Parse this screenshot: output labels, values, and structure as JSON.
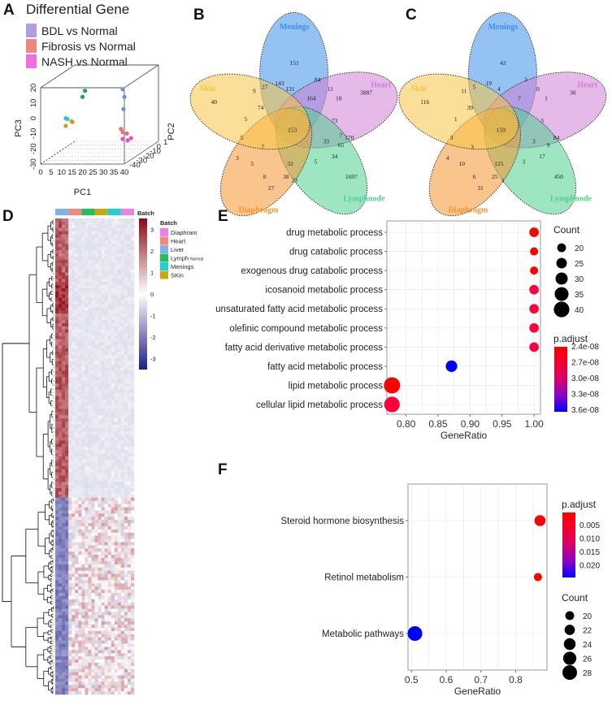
{
  "panels": {
    "A": "A",
    "B": "B",
    "C": "C",
    "D": "D",
    "E": "E",
    "F": "F"
  },
  "chart_data": [
    {
      "id": "A",
      "type": "scatter",
      "subtype": "3d-pca",
      "title": "Differential Gene",
      "legend": [
        {
          "label": "BDL vs Normal",
          "color": "#b39ddb"
        },
        {
          "label": "Fibrosis vs Normal",
          "color": "#f4877c"
        },
        {
          "label": "NASH vs Normal",
          "color": "#f06de0"
        }
      ],
      "xlabel": "PC1",
      "ylabel": "PC2",
      "zlabel": "PC3",
      "xticks": [
        "0",
        "5",
        "10",
        "15",
        "20",
        "25",
        "30",
        "35",
        "40"
      ],
      "yticks": [
        "-40",
        "-30",
        "-20",
        "-10",
        "0",
        "1"
      ],
      "zticks": [
        "-30",
        "-20",
        "-10",
        "0",
        "10",
        "20"
      ],
      "points": [
        {
          "group": "Lymph",
          "color": "#1aa64a",
          "px": 0.53,
          "pz": 0.96
        },
        {
          "group": "Lymph",
          "color": "#1aa64a",
          "px": 0.5,
          "pz": 0.88
        },
        {
          "group": "Liver",
          "color": "#6f8fcf",
          "px": 0.98,
          "pz": 0.98
        },
        {
          "group": "Liver",
          "color": "#6f8fcf",
          "px": 1.0,
          "pz": 0.88
        },
        {
          "group": "Liver",
          "color": "#6f8fcf",
          "px": 0.99,
          "pz": 0.72
        },
        {
          "group": "Menings",
          "color": "#2bc6d6",
          "px": 0.3,
          "pz": 0.6
        },
        {
          "group": "Menings",
          "color": "#2bc6d6",
          "px": 0.32,
          "pz": 0.59
        },
        {
          "group": "SKin",
          "color": "#c9a012",
          "px": 0.37,
          "pz": 0.56
        },
        {
          "group": "SKin",
          "color": "#c9a012",
          "px": 0.38,
          "pz": 0.55
        },
        {
          "group": "SKin",
          "color": "#c9a012",
          "px": 0.3,
          "pz": 0.5
        },
        {
          "group": "Heart",
          "color": "#e86f6f",
          "px": 0.96,
          "pz": 0.46
        },
        {
          "group": "Heart",
          "color": "#e86f6f",
          "px": 0.98,
          "pz": 0.42
        },
        {
          "group": "Heart",
          "color": "#e86f6f",
          "px": 1.03,
          "pz": 0.4
        },
        {
          "group": "Diaphram",
          "color": "#e34fd6",
          "px": 0.98,
          "pz": 0.33
        },
        {
          "group": "Diaphram",
          "color": "#e34fd6",
          "px": 1.04,
          "pz": 0.31
        },
        {
          "group": "Diaphram",
          "color": "#e34fd6",
          "px": 1.08,
          "pz": 0.34
        }
      ]
    },
    {
      "id": "B",
      "type": "venn",
      "sets": [
        "Menings",
        "Heart",
        "Lymphnode",
        "Diaphragm",
        "Skin"
      ],
      "set_colors": {
        "Menings": "#3d8fe8",
        "Heart": "#d07fd6",
        "Lymphnode": "#4fd08f",
        "Diaphragm": "#f5952f",
        "Skin": "#f7c545"
      },
      "labels": [
        {
          "v": "151",
          "x": 0.47,
          "y": 0.26
        },
        {
          "v": "3887",
          "x": 0.81,
          "y": 0.42
        },
        {
          "v": "1697",
          "x": 0.74,
          "y": 0.87
        },
        {
          "v": "27",
          "x": 0.36,
          "y": 0.93
        },
        {
          "v": "40",
          "x": 0.09,
          "y": 0.47
        },
        {
          "v": "143",
          "x": 0.4,
          "y": 0.37
        },
        {
          "v": "84",
          "x": 0.58,
          "y": 0.35
        },
        {
          "v": "9",
          "x": 0.28,
          "y": 0.41
        },
        {
          "v": "27",
          "x": 0.33,
          "y": 0.39
        },
        {
          "v": "131",
          "x": 0.45,
          "y": 0.4
        },
        {
          "v": "11",
          "x": 0.64,
          "y": 0.4
        },
        {
          "v": "164",
          "x": 0.55,
          "y": 0.45
        },
        {
          "v": "18",
          "x": 0.68,
          "y": 0.45
        },
        {
          "v": "74",
          "x": 0.31,
          "y": 0.5
        },
        {
          "v": "5",
          "x": 0.24,
          "y": 0.56
        },
        {
          "v": "153",
          "x": 0.46,
          "y": 0.62
        },
        {
          "v": "73",
          "x": 0.66,
          "y": 0.57
        },
        {
          "v": "5",
          "x": 0.22,
          "y": 0.66
        },
        {
          "v": "7",
          "x": 0.32,
          "y": 0.71
        },
        {
          "v": "33",
          "x": 0.62,
          "y": 0.68
        },
        {
          "v": "7",
          "x": 0.69,
          "y": 0.65
        },
        {
          "v": "170",
          "x": 0.73,
          "y": 0.66
        },
        {
          "v": "65",
          "x": 0.69,
          "y": 0.7
        },
        {
          "v": "3",
          "x": 0.2,
          "y": 0.77
        },
        {
          "v": "5",
          "x": 0.27,
          "y": 0.8
        },
        {
          "v": "32",
          "x": 0.45,
          "y": 0.8
        },
        {
          "v": "5",
          "x": 0.57,
          "y": 0.79
        },
        {
          "v": "34",
          "x": 0.66,
          "y": 0.76
        },
        {
          "v": "8",
          "x": 0.33,
          "y": 0.87
        },
        {
          "v": "38",
          "x": 0.43,
          "y": 0.87
        },
        {
          "v": "23",
          "x": 0.47,
          "y": 0.89
        }
      ]
    },
    {
      "id": "C",
      "type": "venn",
      "sets": [
        "Menings",
        "Heart",
        "Lymphnode",
        "Diaphragm",
        "Skin"
      ],
      "labels": [
        {
          "v": "43",
          "x": 0.47,
          "y": 0.26
        },
        {
          "v": "30",
          "x": 0.81,
          "y": 0.42
        },
        {
          "v": "450",
          "x": 0.74,
          "y": 0.87
        },
        {
          "v": "31",
          "x": 0.36,
          "y": 0.93
        },
        {
          "v": "116",
          "x": 0.09,
          "y": 0.47
        },
        {
          "v": "19",
          "x": 0.4,
          "y": 0.37
        },
        {
          "v": "3",
          "x": 0.58,
          "y": 0.35
        },
        {
          "v": "11",
          "x": 0.28,
          "y": 0.41
        },
        {
          "v": "5",
          "x": 0.33,
          "y": 0.39
        },
        {
          "v": "4",
          "x": 0.45,
          "y": 0.4
        },
        {
          "v": "0",
          "x": 0.64,
          "y": 0.4
        },
        {
          "v": "7",
          "x": 0.55,
          "y": 0.45
        },
        {
          "v": "1",
          "x": 0.68,
          "y": 0.45
        },
        {
          "v": "39",
          "x": 0.31,
          "y": 0.5
        },
        {
          "v": "1",
          "x": 0.24,
          "y": 0.56
        },
        {
          "v": "159",
          "x": 0.46,
          "y": 0.62
        },
        {
          "v": "3",
          "x": 0.66,
          "y": 0.57
        },
        {
          "v": "3",
          "x": 0.22,
          "y": 0.66
        },
        {
          "v": "3",
          "x": 0.32,
          "y": 0.71
        },
        {
          "v": "3",
          "x": 0.62,
          "y": 0.68
        },
        {
          "v": "84",
          "x": 0.73,
          "y": 0.66
        },
        {
          "v": "9",
          "x": 0.69,
          "y": 0.7
        },
        {
          "v": "4",
          "x": 0.2,
          "y": 0.77
        },
        {
          "v": "10",
          "x": 0.27,
          "y": 0.8
        },
        {
          "v": "125",
          "x": 0.45,
          "y": 0.8
        },
        {
          "v": "3",
          "x": 0.57,
          "y": 0.79
        },
        {
          "v": "17",
          "x": 0.66,
          "y": 0.76
        },
        {
          "v": "6",
          "x": 0.33,
          "y": 0.87
        },
        {
          "v": "25",
          "x": 0.43,
          "y": 0.87
        },
        {
          "v": "1",
          "x": 0.47,
          "y": 0.89
        }
      ]
    },
    {
      "id": "D",
      "type": "heatmap",
      "batch_label": "Batch",
      "batch_legend": [
        {
          "label": "Diaphram",
          "color": "#f07ee8"
        },
        {
          "label": "Heart",
          "color": "#f4877c"
        },
        {
          "label": "Liver",
          "color": "#7fb0f0"
        },
        {
          "label": "Lymph",
          "sub": "Normal",
          "color": "#1fbf5a"
        },
        {
          "label": "Menings",
          "color": "#1fd0dc"
        },
        {
          "label": "SKin",
          "color": "#c9a812"
        }
      ],
      "column_batches": [
        "#7fb0f0",
        "#f4877c",
        "#1fbf5a",
        "#c9a812",
        "#1fd0dc",
        "#f07ee8"
      ],
      "colorbar_ticks": [
        "3",
        "2",
        "1",
        "0",
        "-1",
        "-2",
        "-3"
      ],
      "value_range": [
        -3.5,
        3.5
      ]
    },
    {
      "id": "E",
      "type": "scatter",
      "subtype": "dotplot",
      "categories": [
        "drug metabolic process",
        "drug catabolic process",
        "exogenous drug catabolic process",
        "icosanoid metabolic process",
        "unsaturated fatty acid metabolic process",
        "olefinic compound metabolic process",
        "fatty acid derivative metabolic process",
        "fatty acid metabolic process",
        "lipid metabolic process",
        "cellular lipid metabolic process"
      ],
      "x": [
        1.0,
        1.0,
        1.0,
        1.0,
        1.0,
        1.0,
        1.0,
        0.871,
        0.778,
        0.778
      ],
      "count": [
        22,
        18,
        18,
        22,
        22,
        22,
        22,
        28,
        42,
        40
      ],
      "p_adjust": [
        2.4e-08,
        2.4e-08,
        2.4e-08,
        2.9e-08,
        2.9e-08,
        2.9e-08,
        2.9e-08,
        3.7e-08,
        2.4e-08,
        2.9e-08
      ],
      "xlabel": "GeneRatio",
      "xticks": [
        "0.80",
        "0.85",
        "0.90",
        "0.95",
        "1.00"
      ],
      "xlim": [
        0.77,
        1.01
      ],
      "size_legend": {
        "title": "Count",
        "values": [
          "20",
          "25",
          "30",
          "35",
          "40"
        ]
      },
      "color_legend": {
        "title": "p.adjust",
        "ticks": [
          "2.4e-08",
          "2.7e-08",
          "3.0e-08",
          "3.3e-08",
          "3.6e-08"
        ]
      }
    },
    {
      "id": "F",
      "type": "scatter",
      "subtype": "dotplot",
      "categories": [
        "Steroid hormone biosynthesis",
        "Retinol metabolism",
        "Metabolic pathways"
      ],
      "x": [
        0.87,
        0.864,
        0.51
      ],
      "count": [
        23,
        19,
        28
      ],
      "p_adjust": [
        0.001,
        0.001,
        0.024
      ],
      "xlabel": "GeneRatio",
      "xticks": [
        "0.5",
        "0.6",
        "0.7",
        "0.8"
      ],
      "xlim": [
        0.49,
        0.89
      ],
      "color_legend": {
        "title": "p.adjust",
        "ticks": [
          "0.005",
          "0.010",
          "0.015",
          "0.020"
        ]
      },
      "size_legend": {
        "title": "Count",
        "values": [
          "20",
          "22",
          "24",
          "26",
          "28"
        ]
      }
    }
  ]
}
